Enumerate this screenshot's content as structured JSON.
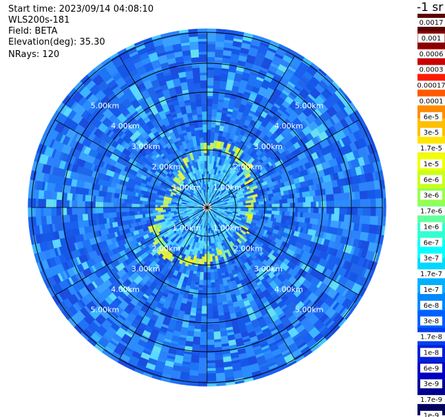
{
  "header": {
    "start_time": "Start time: 2023/09/14 04:08:10",
    "instrument": "WLS200s-181",
    "field": "Field: BETA",
    "elevation": "Elevation(deg): 35.30",
    "nrays": "NRays: 120"
  },
  "colorbar": {
    "unit_label": "-1 sr",
    "ticks": [
      "0.0017",
      "0.001",
      "0.0006",
      "0.0003",
      "0.00017",
      "0.0001",
      "6e-5",
      "3e-5",
      "1.7e-5",
      "1e-5",
      "6e-6",
      "3e-6",
      "1.7e-6",
      "1e-6",
      "6e-7",
      "3e-7",
      "1.7e-7",
      "1e-7",
      "6e-8",
      "3e-8",
      "1.7e-8",
      "1e-8",
      "6e-9",
      "3e-9",
      "1.7e-9",
      "1e-9"
    ],
    "colors": [
      "#5a0000",
      "#8a0000",
      "#c80000",
      "#ff1a00",
      "#ff5a00",
      "#ff8c00",
      "#ffbe00",
      "#ffe600",
      "#f0ff00",
      "#c8ff1a",
      "#96ff50",
      "#64ffa0",
      "#32ffd2",
      "#00ffff",
      "#00d8ff",
      "#00b0ff",
      "#0088ff",
      "#0060ff",
      "#0040f0",
      "#0020d8",
      "#0000c0",
      "#000090",
      "#000060"
    ]
  },
  "chart_data": {
    "type": "heatmap",
    "projection": "polar-ppi",
    "field": "BETA",
    "nrays": 120,
    "range_max_km": 6.2,
    "range_rings_km": [
      1,
      2,
      3,
      4,
      5
    ],
    "range_labels": [
      "1.00km",
      "2.00km",
      "3.00km",
      "4.00km",
      "5.00km"
    ],
    "spoke_angles_deg": [
      0,
      30,
      60,
      90,
      120,
      150,
      180,
      210,
      240,
      270,
      300,
      330
    ],
    "scale": "log",
    "cloud_ring_range_km": [
      1.6,
      2.2
    ],
    "background_level": "1e-8 to 1e-7",
    "cloud_ring_level": "1e-5 to 1e-6"
  }
}
